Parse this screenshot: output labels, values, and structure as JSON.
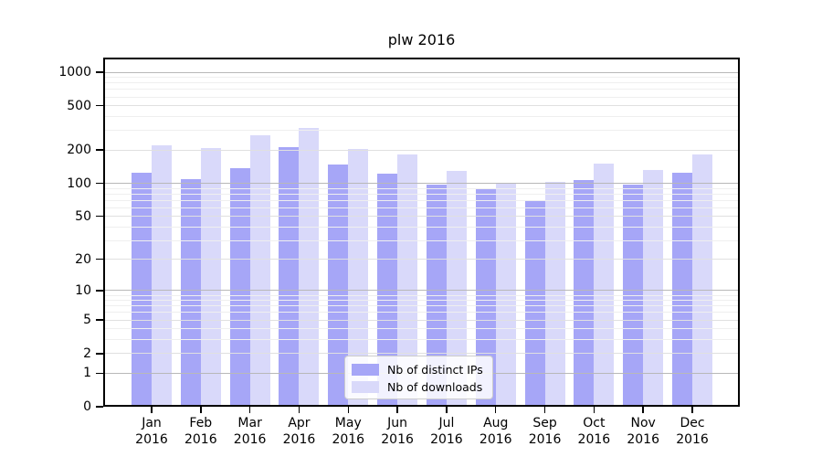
{
  "title": "plw 2016",
  "chart_data": {
    "type": "bar",
    "title": "plw 2016",
    "categories": [
      "Jan",
      "Feb",
      "Mar",
      "Apr",
      "May",
      "Jun",
      "Jul",
      "Aug",
      "Sep",
      "Oct",
      "Nov",
      "Dec"
    ],
    "category_year": "2016",
    "series": [
      {
        "name": "Nb of distinct IPs",
        "color": "#a6a6f7",
        "values": [
          125,
          108,
          136,
          211,
          147,
          122,
          98,
          88,
          70,
          106,
          97,
          124
        ]
      },
      {
        "name": "Nb of downloads",
        "color": "#d9d9fa",
        "values": [
          220,
          209,
          270,
          316,
          206,
          182,
          130,
          100,
          102,
          151,
          133,
          182
        ]
      }
    ],
    "yscale": "symlog-log1p",
    "y_ticks": [
      0,
      1,
      2,
      5,
      10,
      20,
      50,
      100,
      200,
      500,
      1000
    ],
    "ylim": [
      0,
      1350
    ],
    "grid": true,
    "legend_position": "inside-bottom-center"
  },
  "colors": {
    "bar_distinct_ips": "#a6a6f7",
    "bar_downloads": "#d9d9fa",
    "grid_major": "#b8b8b8",
    "grid_minor_labeled": "#e0e0e0",
    "grid_minor_faint": "#efefef",
    "frame": "#000000",
    "legend_border": "#cccccc"
  }
}
